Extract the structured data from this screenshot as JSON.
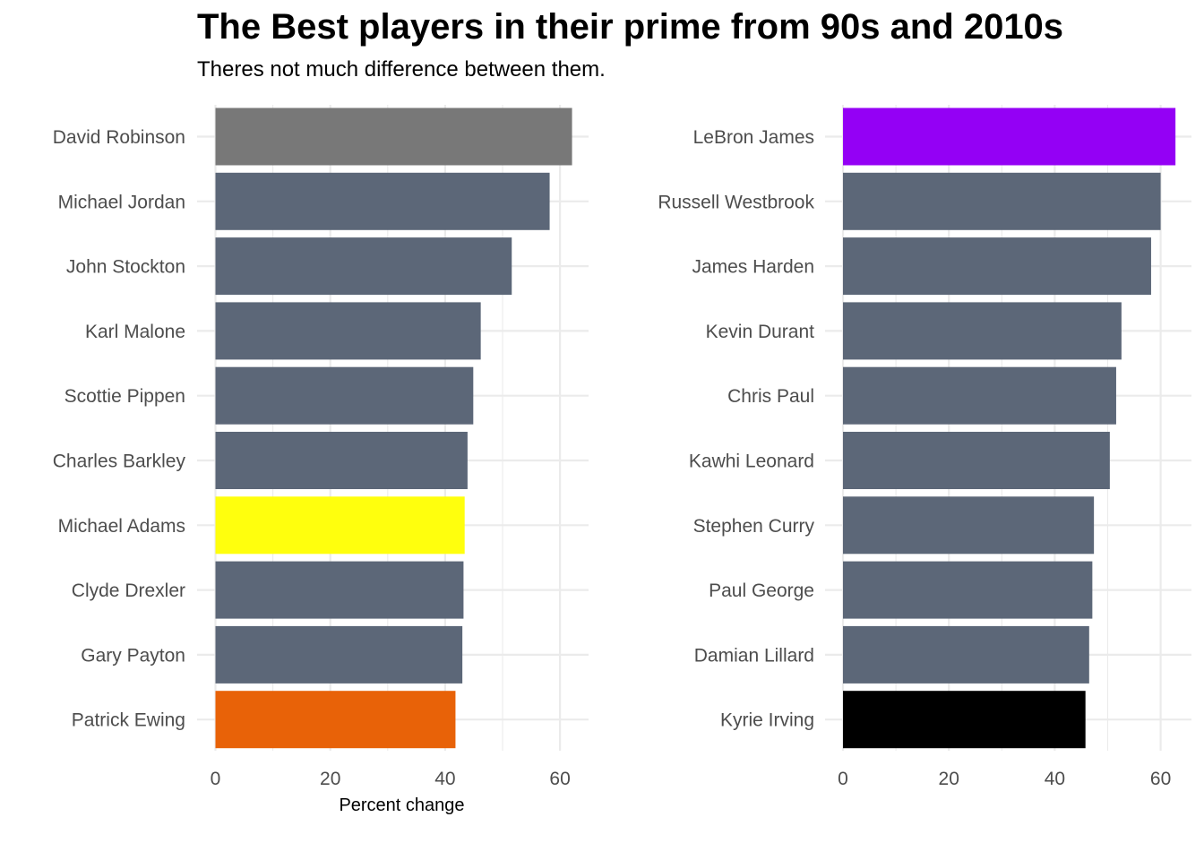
{
  "title": "The Best players in their prime from 90s and 2010s",
  "subtitle": "Theres not much difference between them.",
  "colors": {
    "default_bar": "#5c6778",
    "grid": "#ebebeb",
    "tick_label": "#4d4d4d"
  },
  "chart_data": [
    {
      "type": "bar",
      "orientation": "horizontal",
      "categories": [
        "David Robinson",
        "Michael Jordan",
        "John Stockton",
        "Karl Malone",
        "Scottie Pippen",
        "Charles Barkley",
        "Michael Adams",
        "Clyde Drexler",
        "Gary Payton",
        "Patrick Ewing"
      ],
      "values": [
        62.1,
        58.2,
        51.6,
        46.2,
        44.9,
        43.9,
        43.4,
        43.2,
        43.0,
        41.8
      ],
      "bar_colors": [
        "#787878",
        "#5c6778",
        "#5c6778",
        "#5c6778",
        "#5c6778",
        "#5c6778",
        "#ffff0d",
        "#5c6778",
        "#5c6778",
        "#e86208"
      ],
      "x_ticks": [
        "0",
        "20",
        "40",
        "60"
      ],
      "xlim": [
        0,
        65
      ],
      "xlabel": "Percent change",
      "grid": true
    },
    {
      "type": "bar",
      "orientation": "horizontal",
      "categories": [
        "LeBron James",
        "Russell Westbrook",
        "James Harden",
        "Kevin Durant",
        "Chris Paul",
        "Kawhi Leonard",
        "Stephen Curry",
        "Paul George",
        "Damian Lillard",
        "Kyrie Irving"
      ],
      "values": [
        62.8,
        60.0,
        58.2,
        52.6,
        51.6,
        50.4,
        47.4,
        47.1,
        46.5,
        45.8
      ],
      "bar_colors": [
        "#9400f5",
        "#5c6778",
        "#5c6778",
        "#5c6778",
        "#5c6778",
        "#5c6778",
        "#5c6778",
        "#5c6778",
        "#5c6778",
        "#000000"
      ],
      "x_ticks": [
        "0",
        "20",
        "40",
        "60"
      ],
      "xlim": [
        0,
        65
      ],
      "xlabel": "",
      "grid": true
    }
  ]
}
